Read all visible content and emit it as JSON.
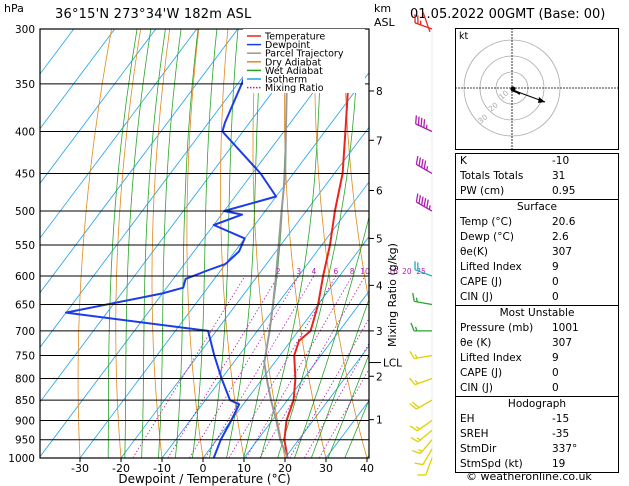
{
  "header": {
    "location": "36°15'N  273°34'W  182m  ASL",
    "datetime": "01.05.2022  00GMT  (Base: 00)",
    "hpa_label": "hPa",
    "km_label": "km",
    "asl_label": "ASL",
    "credit": "© weatheronline.co.uk"
  },
  "chart_data": {
    "type": "line",
    "xlabel": "Dewpoint / Temperature (°C)",
    "ylabel": "Mixing Ratio (g/kg)",
    "x_ticks": [
      -30,
      -20,
      -10,
      0,
      10,
      20,
      30,
      40
    ],
    "pressure_levels": [
      300,
      350,
      400,
      450,
      500,
      550,
      600,
      650,
      700,
      750,
      800,
      850,
      900,
      950,
      1000
    ],
    "km_ticks": [
      {
        "km": "8",
        "p": 357
      },
      {
        "km": "7",
        "p": 410
      },
      {
        "km": "6",
        "p": 472
      },
      {
        "km": "5",
        "p": 540
      },
      {
        "km": "4",
        "p": 616
      },
      {
        "km": "3",
        "p": 700
      },
      {
        "km": "2",
        "p": 795
      },
      {
        "km": "1",
        "p": 898
      }
    ],
    "lcl": {
      "label": "LCL",
      "p": 765
    },
    "mixing_ratio_labels": [
      "2",
      "3",
      "4",
      "6",
      "8",
      "10",
      "16",
      "20",
      "25"
    ],
    "legend": [
      {
        "label": "Temperature",
        "color": "#e8241c",
        "dash": false
      },
      {
        "label": "Dewpoint",
        "color": "#1c3ce8",
        "dash": false
      },
      {
        "label": "Parcel Trajectory",
        "color": "#999999",
        "dash": false
      },
      {
        "label": "Dry Adiabat",
        "color": "#e08a1c",
        "dash": false
      },
      {
        "label": "Wet Adiabat",
        "color": "#2aa52a",
        "dash": false
      },
      {
        "label": "Isotherm",
        "color": "#1ca0e8",
        "dash": false
      },
      {
        "label": "Mixing Ratio",
        "color": "#b01cb0",
        "dash": true
      }
    ],
    "series": [
      {
        "name": "Temperature",
        "color": "#e8241c",
        "points": [
          {
            "p": 1000,
            "t": 20.6
          },
          {
            "p": 950,
            "t": 16.5
          },
          {
            "p": 900,
            "t": 13.5
          },
          {
            "p": 850,
            "t": 11.5
          },
          {
            "p": 800,
            "t": 8.0
          },
          {
            "p": 750,
            "t": 3.5
          },
          {
            "p": 720,
            "t": 2.0
          },
          {
            "p": 700,
            "t": 3.0
          },
          {
            "p": 650,
            "t": 0.0
          },
          {
            "p": 600,
            "t": -4.0
          },
          {
            "p": 550,
            "t": -8.0
          },
          {
            "p": 500,
            "t": -13.0
          },
          {
            "p": 450,
            "t": -18.0
          },
          {
            "p": 400,
            "t": -25.0
          },
          {
            "p": 350,
            "t": -33.0
          },
          {
            "p": 300,
            "t": -42.0
          }
        ]
      },
      {
        "name": "Dewpoint",
        "color": "#1c3ce8",
        "points": [
          {
            "p": 1000,
            "t": 2.6
          },
          {
            "p": 950,
            "t": 1.0
          },
          {
            "p": 900,
            "t": 0.0
          },
          {
            "p": 860,
            "t": -1.0
          },
          {
            "p": 850,
            "t": -4.0
          },
          {
            "p": 800,
            "t": -10.0
          },
          {
            "p": 750,
            "t": -16.0
          },
          {
            "p": 700,
            "t": -22.0
          },
          {
            "p": 665,
            "t": -60.0
          },
          {
            "p": 630,
            "t": -40.0
          },
          {
            "p": 620,
            "t": -36.0
          },
          {
            "p": 605,
            "t": -37.0
          },
          {
            "p": 590,
            "t": -33.0
          },
          {
            "p": 580,
            "t": -30.0
          },
          {
            "p": 560,
            "t": -29.0
          },
          {
            "p": 540,
            "t": -30.0
          },
          {
            "p": 520,
            "t": -40.0
          },
          {
            "p": 505,
            "t": -35.0
          },
          {
            "p": 500,
            "t": -40.0
          },
          {
            "p": 480,
            "t": -30.0
          },
          {
            "p": 450,
            "t": -38.0
          },
          {
            "p": 400,
            "t": -55.0
          },
          {
            "p": 390,
            "t": -56.0
          },
          {
            "p": 350,
            "t": -59.0
          },
          {
            "p": 300,
            "t": -64.0
          }
        ]
      },
      {
        "name": "Parcel Trajectory",
        "color": "#999999",
        "points": [
          {
            "p": 1000,
            "t": 20.6
          },
          {
            "p": 950,
            "t": 15.5
          },
          {
            "p": 900,
            "t": 11.0
          },
          {
            "p": 850,
            "t": 6.0
          },
          {
            "p": 800,
            "t": 1.0
          },
          {
            "p": 765,
            "t": -2.5
          },
          {
            "p": 700,
            "t": -7.0
          },
          {
            "p": 650,
            "t": -11.0
          },
          {
            "p": 600,
            "t": -15.5
          },
          {
            "p": 550,
            "t": -20.5
          },
          {
            "p": 500,
            "t": -26.0
          },
          {
            "p": 450,
            "t": -32.0
          },
          {
            "p": 400,
            "t": -39.5
          },
          {
            "p": 350,
            "t": -48.0
          },
          {
            "p": 300,
            "t": -57.0
          }
        ]
      }
    ],
    "winds": [
      {
        "p": 1000,
        "dir": 200,
        "spd": 10,
        "color": "#e0d000"
      },
      {
        "p": 975,
        "dir": 210,
        "spd": 10,
        "color": "#e0d000"
      },
      {
        "p": 950,
        "dir": 220,
        "spd": 15,
        "color": "#e0d000"
      },
      {
        "p": 925,
        "dir": 230,
        "spd": 15,
        "color": "#e0d000"
      },
      {
        "p": 900,
        "dir": 235,
        "spd": 15,
        "color": "#e0d000"
      },
      {
        "p": 850,
        "dir": 240,
        "spd": 20,
        "color": "#e0d000"
      },
      {
        "p": 800,
        "dir": 250,
        "spd": 15,
        "color": "#e0d000"
      },
      {
        "p": 750,
        "dir": 260,
        "spd": 15,
        "color": "#e0d000"
      },
      {
        "p": 700,
        "dir": 270,
        "spd": 15,
        "color": "#2aa52a"
      },
      {
        "p": 650,
        "dir": 280,
        "spd": 15,
        "color": "#2aa52a"
      },
      {
        "p": 600,
        "dir": 290,
        "spd": 20,
        "color": "#20b0c0"
      },
      {
        "p": 500,
        "dir": 300,
        "spd": 55,
        "color": "#b01cb0"
      },
      {
        "p": 450,
        "dir": 300,
        "spd": 45,
        "color": "#b01cb0"
      },
      {
        "p": 400,
        "dir": 295,
        "spd": 45,
        "color": "#b01cb0"
      },
      {
        "p": 300,
        "dir": 290,
        "spd": 25,
        "color": "#e8241c"
      }
    ],
    "hodograph": {
      "label": "kt",
      "ring_labels": [
        "10",
        "20",
        "30"
      ],
      "storm_motion": {
        "dir": 337,
        "spd": 19
      }
    }
  },
  "indices": {
    "rows": [
      {
        "label": "K",
        "value": "-10"
      },
      {
        "label": "Totals Totals",
        "value": "31"
      },
      {
        "label": "PW (cm)",
        "value": "0.95"
      }
    ],
    "surface": {
      "title": "Surface",
      "rows": [
        {
          "label": "Temp (°C)",
          "value": "20.6"
        },
        {
          "label": "Dewp (°C)",
          "value": "2.6"
        },
        {
          "label": "θe(K)",
          "value": "307"
        },
        {
          "label": "Lifted Index",
          "value": "9"
        },
        {
          "label": "CAPE (J)",
          "value": "0"
        },
        {
          "label": "CIN (J)",
          "value": "0"
        }
      ]
    },
    "unstable": {
      "title": "Most Unstable",
      "rows": [
        {
          "label": "Pressure (mb)",
          "value": "1001"
        },
        {
          "label": "θe (K)",
          "value": "307"
        },
        {
          "label": "Lifted Index",
          "value": "9"
        },
        {
          "label": "CAPE (J)",
          "value": "0"
        },
        {
          "label": "CIN (J)",
          "value": "0"
        }
      ]
    },
    "hodo": {
      "title": "Hodograph",
      "rows": [
        {
          "label": "EH",
          "value": "-15"
        },
        {
          "label": "SREH",
          "value": "-35"
        },
        {
          "label": "StmDir",
          "value": "337°"
        },
        {
          "label": "StmSpd (kt)",
          "value": "19"
        }
      ]
    }
  }
}
